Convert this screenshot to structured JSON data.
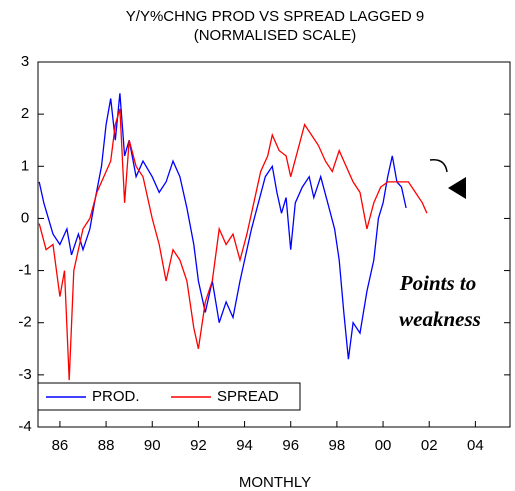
{
  "chart_data": {
    "type": "line",
    "title": "Y/Y%CHNG PROD VS SPREAD LAGGED 9",
    "subtitle": "(NORMALISED SCALE)",
    "x_label": "MONTHLY",
    "annotation": [
      "Points to",
      "weakness"
    ],
    "xlim": [
      1985.05,
      2005.5
    ],
    "xticks": [
      {
        "value": 1986,
        "label": "86"
      },
      {
        "value": 1988,
        "label": "88"
      },
      {
        "value": 1990,
        "label": "90"
      },
      {
        "value": 1992,
        "label": "92"
      },
      {
        "value": 1994,
        "label": "94"
      },
      {
        "value": 1996,
        "label": "96"
      },
      {
        "value": 1998,
        "label": "98"
      },
      {
        "value": 2000,
        "label": "00"
      },
      {
        "value": 2002,
        "label": "02"
      },
      {
        "value": 2004,
        "label": "04"
      }
    ],
    "ylim": [
      -4,
      3
    ],
    "yticks": [
      -4,
      -3,
      -2,
      -1,
      0,
      1,
      2,
      3
    ],
    "legend": "bottom-left",
    "series": [
      {
        "name": "PROD.",
        "color": "#0000ff",
        "x": [
          1985.1,
          1985.3,
          1985.5,
          1985.7,
          1986.0,
          1986.3,
          1986.5,
          1986.8,
          1987.0,
          1987.3,
          1987.5,
          1987.8,
          1988.0,
          1988.2,
          1988.4,
          1988.6,
          1988.8,
          1989.0,
          1989.3,
          1989.6,
          1990.0,
          1990.3,
          1990.6,
          1990.9,
          1991.2,
          1991.5,
          1991.8,
          1992.0,
          1992.3,
          1992.6,
          1992.9,
          1993.2,
          1993.5,
          1993.8,
          1994.0,
          1994.3,
          1994.6,
          1994.9,
          1995.2,
          1995.4,
          1995.6,
          1995.8,
          1996.0,
          1996.2,
          1996.5,
          1996.8,
          1997.0,
          1997.3,
          1997.6,
          1997.9,
          1998.1,
          1998.3,
          1998.5,
          1998.7,
          1999.0,
          1999.3,
          1999.6,
          1999.8,
          2000.0,
          2000.2,
          2000.4,
          2000.6,
          2000.8,
          2001.0
        ],
        "values": [
          0.7,
          0.3,
          0,
          -0.3,
          -0.5,
          -0.2,
          -0.7,
          -0.3,
          -0.6,
          -0.2,
          0.3,
          1.0,
          1.8,
          2.3,
          1.5,
          2.4,
          1.2,
          1.5,
          0.8,
          1.1,
          0.8,
          0.5,
          0.7,
          1.1,
          0.8,
          0.2,
          -0.5,
          -1.2,
          -1.8,
          -1.2,
          -2.0,
          -1.6,
          -1.9,
          -1.2,
          -0.8,
          -0.2,
          0.3,
          0.8,
          1.0,
          0.5,
          0.1,
          0.4,
          -0.6,
          0.3,
          0.6,
          0.8,
          0.4,
          0.8,
          0.3,
          -0.2,
          -0.8,
          -1.8,
          -2.7,
          -2.0,
          -2.2,
          -1.4,
          -0.8,
          0.0,
          0.3,
          0.8,
          1.2,
          0.7,
          0.6,
          0.2
        ]
      },
      {
        "name": "SPREAD",
        "color": "#ff0000",
        "x": [
          1985.1,
          1985.4,
          1985.7,
          1986.0,
          1986.2,
          1986.4,
          1986.6,
          1986.8,
          1987.0,
          1987.3,
          1987.6,
          1987.9,
          1988.2,
          1988.4,
          1988.6,
          1988.8,
          1989.0,
          1989.3,
          1989.6,
          1990.0,
          1990.3,
          1990.6,
          1990.9,
          1991.2,
          1991.5,
          1991.8,
          1992.0,
          1992.3,
          1992.6,
          1992.9,
          1993.2,
          1993.5,
          1993.8,
          1994.1,
          1994.4,
          1994.7,
          1995.0,
          1995.2,
          1995.5,
          1995.8,
          1996.0,
          1996.3,
          1996.6,
          1996.9,
          1997.2,
          1997.5,
          1997.8,
          1998.1,
          1998.4,
          1998.7,
          1999.0,
          1999.3,
          1999.6,
          1999.9,
          2000.2,
          2000.5,
          2000.8,
          2001.1,
          2001.4,
          2001.7,
          2001.9
        ],
        "values": [
          -0.1,
          -0.6,
          -0.5,
          -1.5,
          -1.0,
          -3.1,
          -1.0,
          -0.6,
          -0.2,
          0.0,
          0.5,
          0.8,
          1.1,
          1.8,
          2.1,
          0.3,
          1.5,
          1.0,
          0.8,
          0.0,
          -0.5,
          -1.2,
          -0.6,
          -0.8,
          -1.2,
          -2.1,
          -2.5,
          -1.6,
          -1.2,
          -0.2,
          -0.5,
          -0.3,
          -0.8,
          -0.3,
          0.3,
          0.9,
          1.2,
          1.6,
          1.3,
          1.2,
          0.8,
          1.3,
          1.8,
          1.6,
          1.4,
          1.1,
          0.9,
          1.3,
          1.0,
          0.7,
          0.5,
          -0.2,
          0.3,
          0.6,
          0.7,
          0.7,
          0.7,
          0.7,
          0.5,
          0.3,
          0.1
        ]
      }
    ]
  }
}
